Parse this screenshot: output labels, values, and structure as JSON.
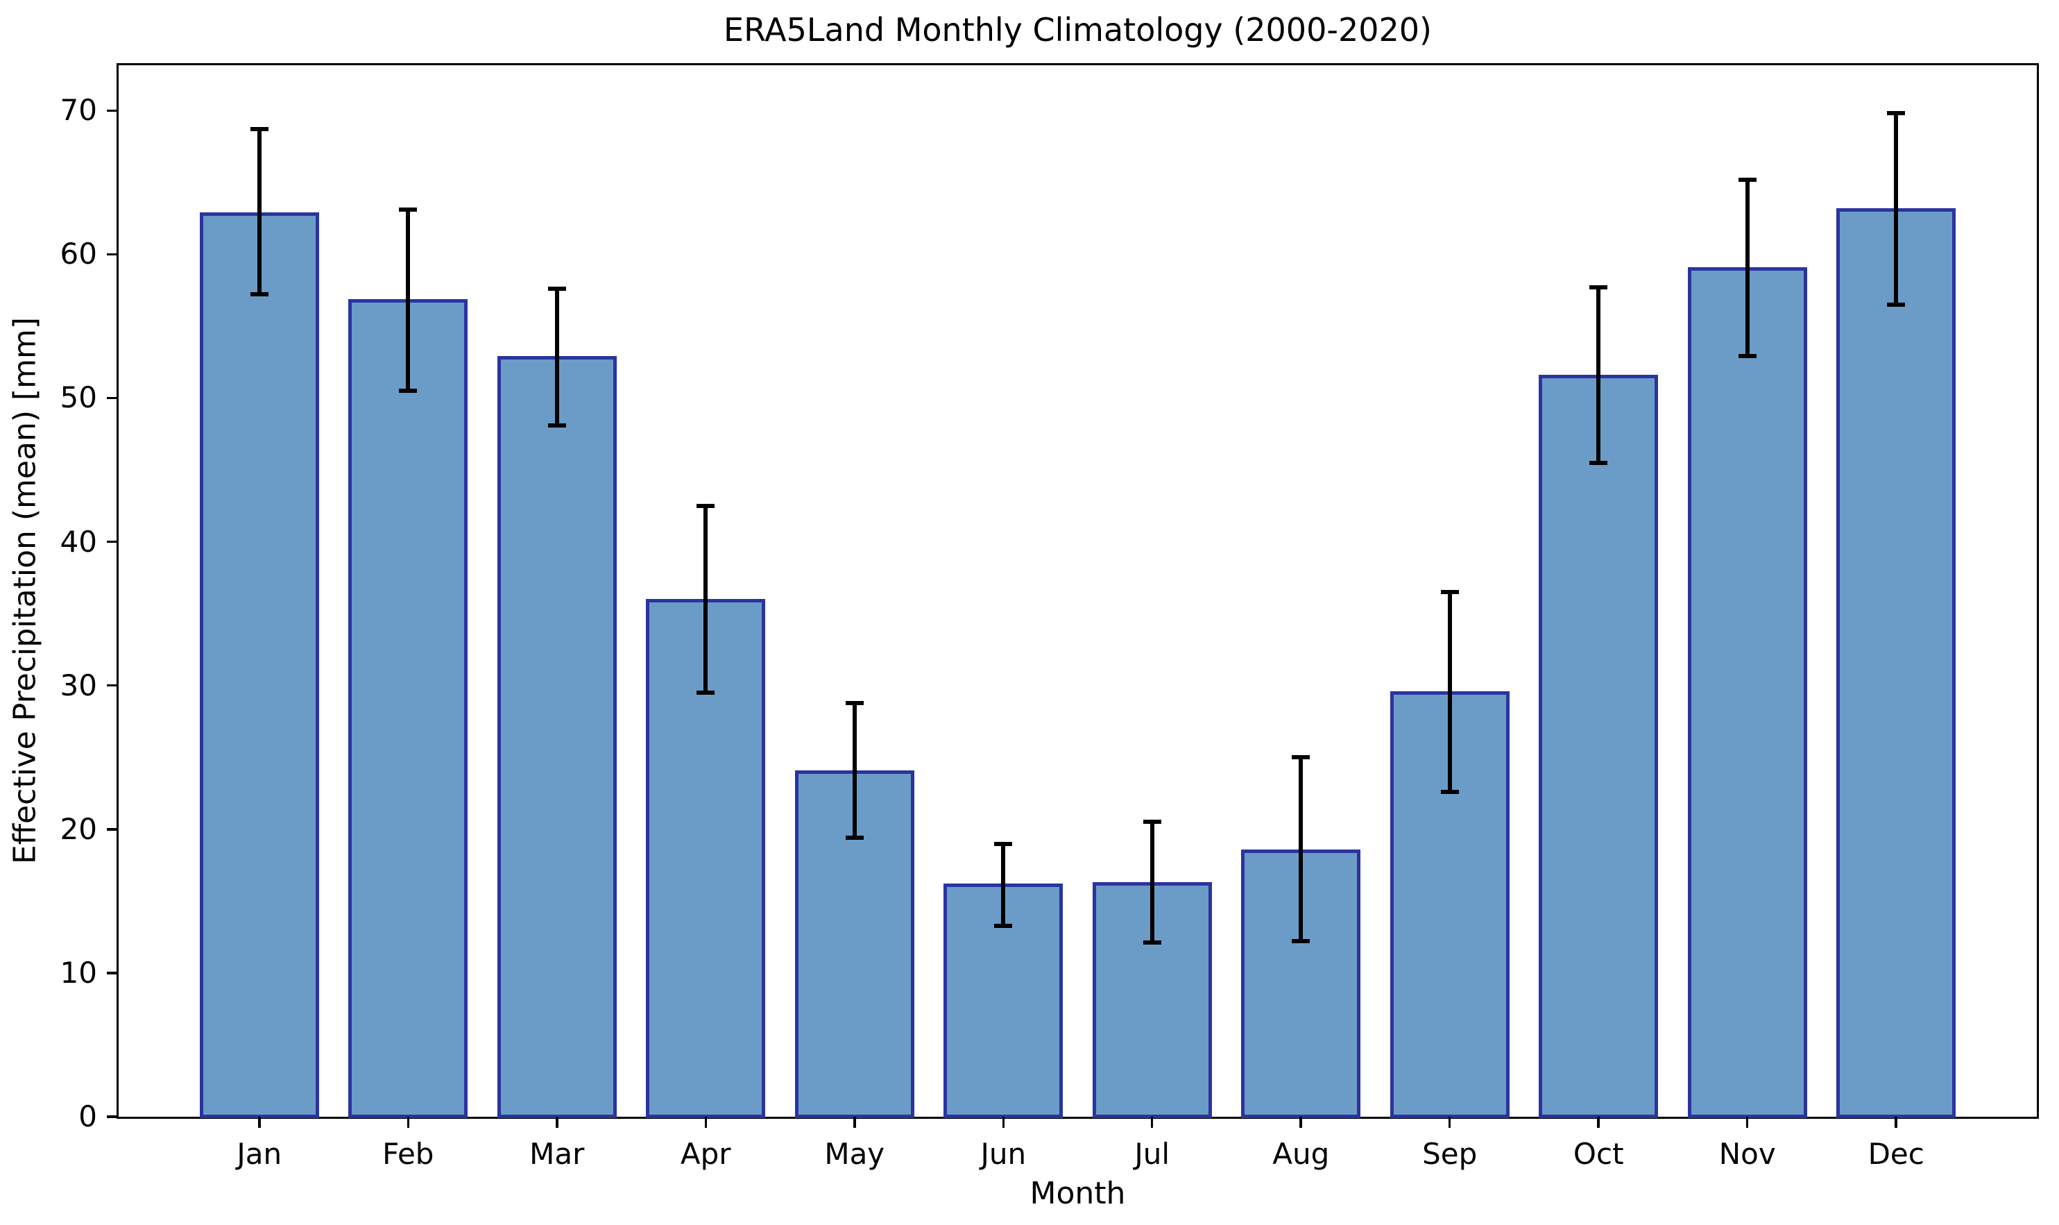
{
  "chart_data": {
    "type": "bar",
    "title": "ERA5Land Monthly Climatology (2000-2020)",
    "xlabel": "Month",
    "ylabel": "Effective Precipitation (mean) [mm]",
    "categories": [
      "Jan",
      "Feb",
      "Mar",
      "Apr",
      "May",
      "Jun",
      "Jul",
      "Aug",
      "Sep",
      "Oct",
      "Nov",
      "Dec"
    ],
    "series": [
      {
        "name": "Effective Precipitation mean",
        "values": [
          62.9,
          56.9,
          52.9,
          36.0,
          24.1,
          16.2,
          16.3,
          18.6,
          29.6,
          51.6,
          59.1,
          63.2
        ],
        "error_low": [
          57.2,
          50.5,
          48.1,
          29.5,
          19.4,
          13.3,
          12.1,
          12.2,
          22.6,
          45.5,
          52.9,
          56.5
        ],
        "error_high": [
          68.7,
          63.1,
          57.6,
          42.5,
          28.8,
          19.0,
          20.5,
          25.0,
          36.5,
          57.7,
          65.2,
          69.8
        ]
      }
    ],
    "yticks": [
      0,
      10,
      20,
      30,
      40,
      50,
      60,
      70
    ],
    "ylim": [
      0,
      73.2
    ],
    "grid": false,
    "legend_position": "none",
    "colors": {
      "bar_fill": "#6b9cc8",
      "bar_edge": "#2a34a0",
      "error_bar": "#000000",
      "axis": "#000000",
      "text": "#000000",
      "background": "#ffffff"
    }
  }
}
